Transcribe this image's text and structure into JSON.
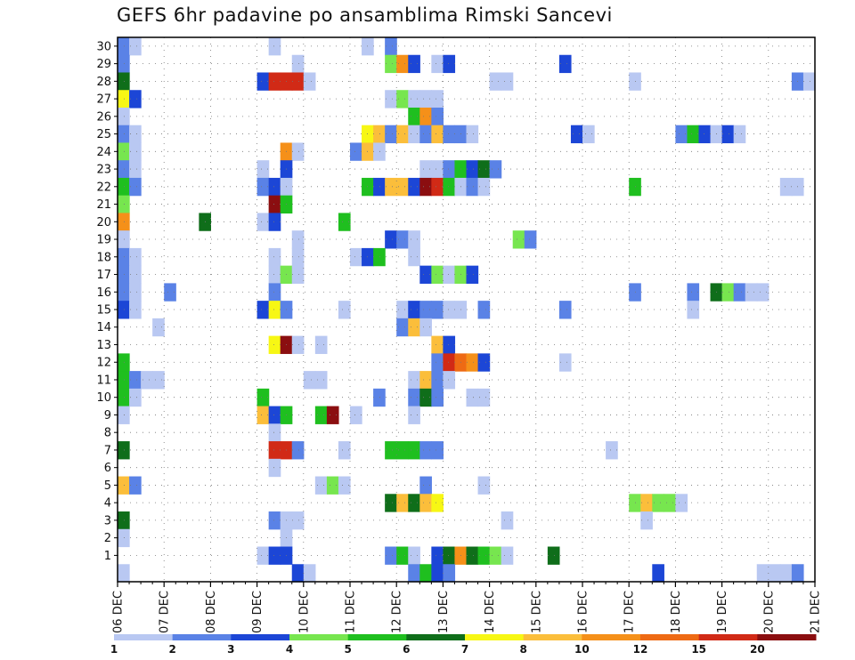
{
  "chart_data": {
    "type": "heatmap",
    "title": "GEFS 6hr padavine po ansamblima Rimski Sancevi",
    "x_labels": [
      "06 DEC",
      "07 DEC",
      "08 DEC",
      "09 DEC",
      "10 DEC",
      "11 DEC",
      "12 DEC",
      "13 DEC",
      "14 DEC",
      "15 DEC",
      "16 DEC",
      "17 DEC",
      "18 DEC",
      "19 DEC",
      "20 DEC",
      "21 DEC"
    ],
    "x_slots_per_day": 4,
    "y_labels": [
      "1",
      "2",
      "3",
      "4",
      "5",
      "6",
      "7",
      "8",
      "9",
      "10",
      "11",
      "12",
      "13",
      "14",
      "15",
      "16",
      "17",
      "18",
      "19",
      "20",
      "21",
      "22",
      "23",
      "24",
      "25",
      "26",
      "27",
      "28",
      "29",
      "30"
    ],
    "y_range": [
      0,
      30
    ],
    "grid": true,
    "colorbar": {
      "labels": [
        "1",
        "2",
        "3",
        "4",
        "5",
        "6",
        "7",
        "8",
        "10",
        "12",
        "15",
        "20"
      ],
      "colors": [
        "#b9c8f2",
        "#5a82e6",
        "#1c46d6",
        "#77e64f",
        "#1fbf1f",
        "#0f6e1a",
        "#f7f714",
        "#fbbe3b",
        "#f59019",
        "#ee6a14",
        "#d12a16",
        "#8b0e10"
      ]
    },
    "cells": [
      {
        "m": 30,
        "t": [
          [
            1,
            2
          ],
          [
            2,
            1
          ],
          [
            14,
            1
          ],
          [
            22,
            1
          ],
          [
            24,
            2
          ]
        ]
      },
      {
        "m": 29,
        "t": [
          [
            1,
            2
          ],
          [
            16,
            1
          ],
          [
            24,
            4
          ],
          [
            25,
            9
          ],
          [
            26,
            3
          ],
          [
            28,
            1
          ],
          [
            29,
            3
          ],
          [
            39,
            3
          ]
        ]
      },
      {
        "m": 28,
        "t": [
          [
            1,
            6
          ],
          [
            13,
            3
          ],
          [
            14,
            11
          ],
          [
            15,
            11
          ],
          [
            16,
            11
          ],
          [
            17,
            1
          ],
          [
            33,
            1
          ],
          [
            34,
            1
          ],
          [
            45,
            1
          ],
          [
            59,
            2
          ],
          [
            60,
            1
          ]
        ]
      },
      {
        "m": 27,
        "t": [
          [
            1,
            7
          ],
          [
            2,
            3
          ],
          [
            24,
            1
          ],
          [
            25,
            4
          ],
          [
            26,
            1
          ],
          [
            27,
            1
          ],
          [
            28,
            1
          ]
        ]
      },
      {
        "m": 26,
        "t": [
          [
            1,
            1
          ],
          [
            26,
            5
          ],
          [
            27,
            9
          ],
          [
            28,
            2
          ]
        ]
      },
      {
        "m": 25,
        "t": [
          [
            1,
            2
          ],
          [
            2,
            1
          ],
          [
            22,
            7
          ],
          [
            23,
            8
          ],
          [
            24,
            2
          ],
          [
            25,
            8
          ],
          [
            26,
            1
          ],
          [
            27,
            2
          ],
          [
            28,
            8
          ],
          [
            29,
            2
          ],
          [
            30,
            2
          ],
          [
            31,
            1
          ],
          [
            40,
            3
          ],
          [
            41,
            1
          ],
          [
            49,
            2
          ],
          [
            50,
            5
          ],
          [
            51,
            3
          ],
          [
            52,
            1
          ],
          [
            53,
            3
          ],
          [
            54,
            1
          ]
        ]
      },
      {
        "m": 24,
        "t": [
          [
            1,
            4
          ],
          [
            2,
            1
          ],
          [
            15,
            9
          ],
          [
            16,
            1
          ],
          [
            21,
            2
          ],
          [
            22,
            8
          ],
          [
            23,
            1
          ]
        ]
      },
      {
        "m": 23,
        "t": [
          [
            1,
            2
          ],
          [
            2,
            1
          ],
          [
            13,
            1
          ],
          [
            15,
            3
          ],
          [
            27,
            1
          ],
          [
            28,
            1
          ],
          [
            29,
            2
          ],
          [
            30,
            5
          ],
          [
            31,
            3
          ],
          [
            32,
            6
          ],
          [
            33,
            2
          ]
        ]
      },
      {
        "m": 22,
        "t": [
          [
            1,
            5
          ],
          [
            2,
            2
          ],
          [
            13,
            2
          ],
          [
            14,
            3
          ],
          [
            15,
            1
          ],
          [
            22,
            5
          ],
          [
            23,
            3
          ],
          [
            24,
            8
          ],
          [
            25,
            8
          ],
          [
            26,
            3
          ],
          [
            27,
            12
          ],
          [
            28,
            11
          ],
          [
            29,
            5
          ],
          [
            30,
            1
          ],
          [
            31,
            2
          ],
          [
            32,
            1
          ],
          [
            45,
            5
          ],
          [
            58,
            1
          ],
          [
            59,
            1
          ]
        ]
      },
      {
        "m": 21,
        "t": [
          [
            1,
            4
          ],
          [
            14,
            12
          ],
          [
            15,
            5
          ]
        ]
      },
      {
        "m": 20,
        "t": [
          [
            1,
            9
          ],
          [
            8,
            6
          ],
          [
            13,
            1
          ],
          [
            14,
            3
          ],
          [
            20,
            5
          ]
        ]
      },
      {
        "m": 19,
        "t": [
          [
            1,
            1
          ],
          [
            16,
            1
          ],
          [
            24,
            3
          ],
          [
            25,
            2
          ],
          [
            26,
            1
          ],
          [
            35,
            4
          ],
          [
            36,
            2
          ]
        ]
      },
      {
        "m": 18,
        "t": [
          [
            1,
            2
          ],
          [
            2,
            1
          ],
          [
            14,
            1
          ],
          [
            16,
            1
          ],
          [
            21,
            1
          ],
          [
            22,
            3
          ],
          [
            23,
            5
          ],
          [
            26,
            1
          ]
        ]
      },
      {
        "m": 17,
        "t": [
          [
            1,
            2
          ],
          [
            2,
            1
          ],
          [
            14,
            1
          ],
          [
            15,
            4
          ],
          [
            16,
            1
          ],
          [
            27,
            3
          ],
          [
            28,
            4
          ],
          [
            29,
            1
          ],
          [
            30,
            4
          ],
          [
            31,
            3
          ]
        ]
      },
      {
        "m": 16,
        "t": [
          [
            1,
            2
          ],
          [
            2,
            1
          ],
          [
            5,
            2
          ],
          [
            14,
            2
          ],
          [
            45,
            2
          ],
          [
            50,
            2
          ],
          [
            52,
            6
          ],
          [
            53,
            4
          ],
          [
            54,
            2
          ],
          [
            55,
            1
          ],
          [
            56,
            1
          ]
        ]
      },
      {
        "m": 15,
        "t": [
          [
            1,
            3
          ],
          [
            2,
            1
          ],
          [
            13,
            3
          ],
          [
            14,
            7
          ],
          [
            15,
            2
          ],
          [
            20,
            1
          ],
          [
            25,
            1
          ],
          [
            26,
            3
          ],
          [
            27,
            2
          ],
          [
            28,
            2
          ],
          [
            29,
            1
          ],
          [
            30,
            1
          ],
          [
            32,
            2
          ],
          [
            39,
            2
          ],
          [
            50,
            1
          ]
        ]
      },
      {
        "m": 14,
        "t": [
          [
            4,
            1
          ],
          [
            25,
            2
          ],
          [
            26,
            8
          ],
          [
            27,
            1
          ]
        ]
      },
      {
        "m": 13,
        "t": [
          [
            14,
            7
          ],
          [
            15,
            12
          ],
          [
            16,
            1
          ],
          [
            18,
            1
          ],
          [
            28,
            8
          ],
          [
            29,
            3
          ]
        ]
      },
      {
        "m": 12,
        "t": [
          [
            1,
            5
          ],
          [
            28,
            2
          ],
          [
            29,
            11
          ],
          [
            30,
            10
          ],
          [
            31,
            9
          ],
          [
            32,
            3
          ],
          [
            39,
            1
          ]
        ]
      },
      {
        "m": 11,
        "t": [
          [
            1,
            5
          ],
          [
            2,
            2
          ],
          [
            3,
            1
          ],
          [
            4,
            1
          ],
          [
            17,
            1
          ],
          [
            18,
            1
          ],
          [
            26,
            1
          ],
          [
            27,
            8
          ],
          [
            28,
            2
          ],
          [
            29,
            1
          ]
        ]
      },
      {
        "m": 10,
        "t": [
          [
            1,
            5
          ],
          [
            2,
            1
          ],
          [
            13,
            5
          ],
          [
            23,
            2
          ],
          [
            26,
            2
          ],
          [
            27,
            6
          ],
          [
            28,
            2
          ],
          [
            31,
            1
          ],
          [
            32,
            1
          ]
        ]
      },
      {
        "m": 9,
        "t": [
          [
            1,
            1
          ],
          [
            13,
            8
          ],
          [
            14,
            3
          ],
          [
            15,
            5
          ],
          [
            18,
            5
          ],
          [
            19,
            12
          ],
          [
            21,
            1
          ],
          [
            26,
            1
          ]
        ]
      },
      {
        "m": 8,
        "t": [
          [
            14,
            1
          ]
        ]
      },
      {
        "m": 7,
        "t": [
          [
            1,
            6
          ],
          [
            14,
            11
          ],
          [
            15,
            11
          ],
          [
            16,
            2
          ],
          [
            20,
            1
          ],
          [
            24,
            5
          ],
          [
            25,
            5
          ],
          [
            26,
            5
          ],
          [
            27,
            2
          ],
          [
            28,
            2
          ],
          [
            43,
            1
          ]
        ]
      },
      {
        "m": 6,
        "t": [
          [
            14,
            1
          ]
        ]
      },
      {
        "m": 5,
        "t": [
          [
            1,
            8
          ],
          [
            2,
            2
          ],
          [
            18,
            1
          ],
          [
            19,
            4
          ],
          [
            20,
            1
          ],
          [
            27,
            2
          ],
          [
            32,
            1
          ]
        ]
      },
      {
        "m": 4,
        "t": [
          [
            24,
            6
          ],
          [
            25,
            8
          ],
          [
            26,
            6
          ],
          [
            27,
            8
          ],
          [
            28,
            7
          ],
          [
            45,
            4
          ],
          [
            46,
            8
          ],
          [
            47,
            4
          ],
          [
            48,
            4
          ],
          [
            49,
            1
          ]
        ]
      },
      {
        "m": 3,
        "t": [
          [
            1,
            6
          ],
          [
            14,
            2
          ],
          [
            15,
            1
          ],
          [
            16,
            1
          ],
          [
            34,
            1
          ],
          [
            46,
            1
          ]
        ]
      },
      {
        "m": 2,
        "t": [
          [
            1,
            1
          ],
          [
            15,
            1
          ]
        ]
      },
      {
        "m": 1,
        "t": [
          [
            13,
            1
          ],
          [
            14,
            3
          ],
          [
            15,
            3
          ],
          [
            24,
            2
          ],
          [
            25,
            5
          ],
          [
            26,
            1
          ],
          [
            28,
            3
          ],
          [
            29,
            6
          ],
          [
            30,
            9
          ],
          [
            31,
            6
          ],
          [
            32,
            5
          ],
          [
            33,
            4
          ],
          [
            34,
            1
          ],
          [
            38,
            6
          ]
        ]
      },
      {
        "m": 0,
        "t": [
          [
            1,
            1
          ],
          [
            16,
            3
          ],
          [
            17,
            1
          ],
          [
            26,
            2
          ],
          [
            27,
            5
          ],
          [
            28,
            3
          ],
          [
            29,
            2
          ],
          [
            47,
            3
          ],
          [
            56,
            1
          ],
          [
            57,
            1
          ],
          [
            58,
            1
          ],
          [
            59,
            2
          ]
        ]
      }
    ]
  }
}
